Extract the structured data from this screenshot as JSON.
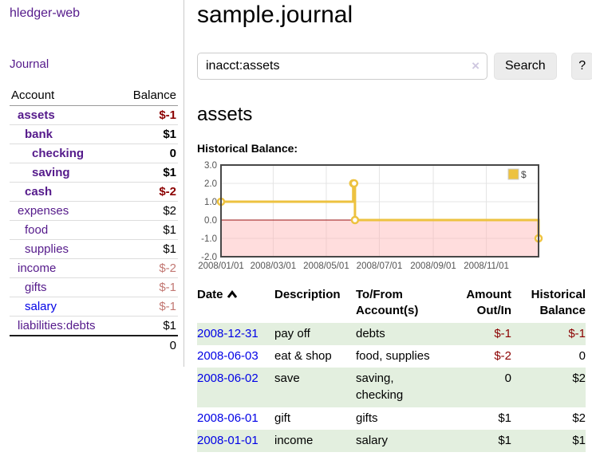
{
  "app": {
    "title": "hledger-web"
  },
  "sidebar": {
    "journal_label": "Journal",
    "accounts_table": {
      "account_header": "Account",
      "balance_header": "Balance",
      "rows": [
        {
          "name": "assets",
          "indent": 0,
          "bold": true,
          "balance": "$-1",
          "balance_class": "neg-strong"
        },
        {
          "name": "bank",
          "indent": 1,
          "bold": true,
          "balance": "$1",
          "balance_class": ""
        },
        {
          "name": "checking",
          "indent": 2,
          "bold": true,
          "balance": "0",
          "balance_class": ""
        },
        {
          "name": "saving",
          "indent": 2,
          "bold": true,
          "balance": "$1",
          "balance_class": ""
        },
        {
          "name": "cash",
          "indent": 1,
          "bold": true,
          "balance": "$-2",
          "balance_class": "neg-strong"
        },
        {
          "name": "expenses",
          "indent": 0,
          "bold": false,
          "balance": "$2",
          "balance_class": ""
        },
        {
          "name": "food",
          "indent": 1,
          "bold": false,
          "balance": "$1",
          "balance_class": ""
        },
        {
          "name": "supplies",
          "indent": 1,
          "bold": false,
          "balance": "$1",
          "balance_class": ""
        },
        {
          "name": "income",
          "indent": 0,
          "bold": false,
          "balance": "$-2",
          "balance_class": "neg-soft"
        },
        {
          "name": "gifts",
          "indent": 1,
          "bold": false,
          "balance": "$-1",
          "balance_class": "neg-soft"
        },
        {
          "name": "salary",
          "indent": 1,
          "bold": false,
          "blue": true,
          "balance": "$-1",
          "balance_class": "neg-soft"
        },
        {
          "name": "liabilities:debts",
          "indent": 0,
          "bold": false,
          "balance": "$1",
          "balance_class": ""
        }
      ],
      "total": "0"
    }
  },
  "main": {
    "title": "sample.journal",
    "search": {
      "value": "inacct:assets",
      "clear_icon": "×",
      "search_button": "Search",
      "help_button": "?"
    },
    "account_heading": "assets",
    "chart_heading": "Historical Balance:"
  },
  "chart_data": {
    "type": "line",
    "step": true,
    "title": "Historical Balance:",
    "x_range": [
      "2008-01-01",
      "2008-12-31"
    ],
    "ylim": [
      -2,
      3
    ],
    "y_ticks": [
      3,
      2,
      1,
      0,
      -1,
      -2
    ],
    "x_ticks": [
      "2008/01/01",
      "2008/03/01",
      "2008/05/01",
      "2008/07/01",
      "2008/09/01",
      "2008/11/01"
    ],
    "series": [
      {
        "name": "$",
        "color": "#EDC240",
        "points": [
          [
            "2008-01-01",
            1
          ],
          [
            "2008-06-01",
            2
          ],
          [
            "2008-06-02",
            2
          ],
          [
            "2008-06-03",
            0
          ],
          [
            "2008-12-31",
            -1
          ]
        ]
      }
    ],
    "legend_position": "top-right",
    "grid": true,
    "negative_fill": "rgba(255,180,180,0.45)",
    "zero_line_color": "#991111"
  },
  "transactions": {
    "headers": [
      "Date",
      "Description",
      "To/From Account(s)",
      "Amount Out/In",
      "Historical Balance"
    ],
    "rows": [
      {
        "date": "2008-12-31",
        "description": "pay off",
        "accounts": "debts",
        "amount": "$-1",
        "amount_neg": true,
        "balance": "$-1",
        "balance_neg": true,
        "shaded": true
      },
      {
        "date": "2008-06-03",
        "description": "eat & shop",
        "accounts": "food, supplies",
        "amount": "$-2",
        "amount_neg": true,
        "balance": "0",
        "balance_neg": false,
        "shaded": false
      },
      {
        "date": "2008-06-02",
        "description": "save",
        "accounts": "saving, checking",
        "amount": "0",
        "amount_neg": false,
        "balance": "$2",
        "balance_neg": false,
        "shaded": true
      },
      {
        "date": "2008-06-01",
        "description": "gift",
        "accounts": "gifts",
        "amount": "$1",
        "amount_neg": false,
        "balance": "$2",
        "balance_neg": false,
        "shaded": false
      },
      {
        "date": "2008-01-01",
        "description": "income",
        "accounts": "salary",
        "amount": "$1",
        "amount_neg": false,
        "balance": "$1",
        "balance_neg": false,
        "shaded": true
      }
    ]
  },
  "colors": {
    "purple": "#551a8b",
    "blue": "#0101e6",
    "neg": "#8b0000",
    "neg-soft": "#c27873",
    "row-green": "#e3efdf",
    "chart-line": "#EDC240"
  }
}
